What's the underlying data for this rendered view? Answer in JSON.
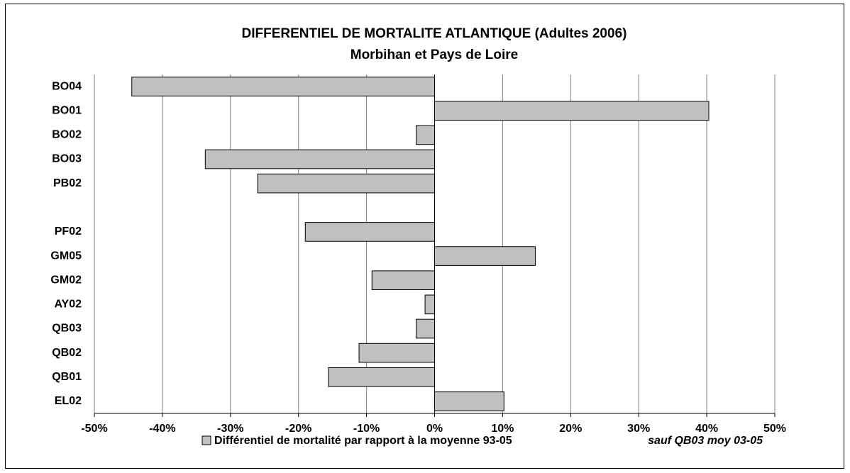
{
  "chart_data": {
    "type": "hbar",
    "title": "DIFFERENTIEL DE MORTALITE ATLANTIQUE  (Adultes 2006)",
    "subtitle": "Morbihan et Pays de Loire",
    "categories": [
      "BO04",
      "BO01",
      "BO02",
      "BO03",
      "PB02",
      null,
      "PF02",
      "GM05",
      "GM02",
      "AY02",
      "QB03",
      "QB02",
      "QB01",
      "EL02"
    ],
    "series": [
      {
        "name": "Différentiel de mortalité par rapport à la moyenne 93-05",
        "color": "#c0c0c0",
        "values": [
          -44.5,
          40.3,
          -2.7,
          -33.7,
          -26.0,
          null,
          -19.0,
          14.8,
          -9.2,
          -1.4,
          -2.7,
          -11.1,
          -15.6,
          10.2
        ]
      }
    ],
    "annotation": "sauf QB03 moy 03-05",
    "xlim": [
      -50,
      50
    ],
    "xticks": [
      {
        "value": -50,
        "label": "-50%"
      },
      {
        "value": -40,
        "label": "-40%"
      },
      {
        "value": -30,
        "label": "-30%"
      },
      {
        "value": -20,
        "label": "-20%"
      },
      {
        "value": -10,
        "label": "-10%"
      },
      {
        "value": 0,
        "label": "0%"
      },
      {
        "value": 10,
        "label": "10%"
      },
      {
        "value": 20,
        "label": "20%"
      },
      {
        "value": 30,
        "label": "30%"
      },
      {
        "value": 40,
        "label": "40%"
      },
      {
        "value": 50,
        "label": "50%"
      }
    ],
    "grid": true
  }
}
